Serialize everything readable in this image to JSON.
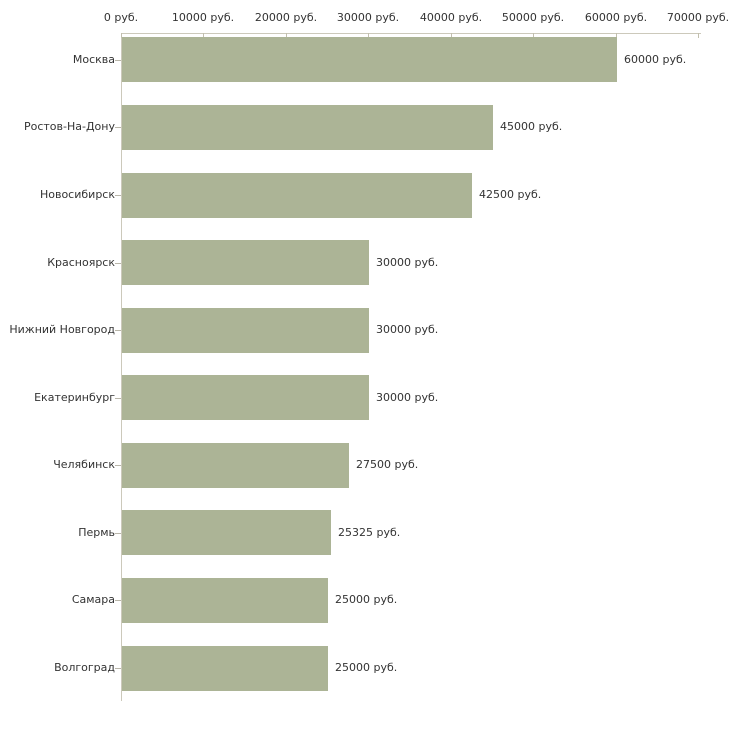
{
  "chart_data": {
    "type": "bar",
    "orientation": "horizontal",
    "unit_suffix": " руб.",
    "categories": [
      "Москва",
      "Ростов-На-Дону",
      "Новосибирск",
      "Красноярск",
      "Нижний Новгород",
      "Екатеринбург",
      "Челябинск",
      "Пермь",
      "Самара",
      "Волгоград"
    ],
    "values": [
      60000,
      45000,
      42500,
      30000,
      30000,
      30000,
      27500,
      25325,
      25000,
      25000
    ],
    "value_labels": [
      "60000 руб.",
      "45000 руб.",
      "42500 руб.",
      "30000 руб.",
      "30000 руб.",
      "30000 руб.",
      "27500 руб.",
      "25325 руб.",
      "25000 руб.",
      "25000 руб."
    ],
    "x_ticks": [
      0,
      10000,
      20000,
      30000,
      40000,
      50000,
      60000,
      70000
    ],
    "x_tick_labels": [
      "0 руб.",
      "10000 руб.",
      "20000 руб.",
      "30000 руб.",
      "40000 руб.",
      "50000 руб.",
      "60000 руб.",
      "70000 руб."
    ],
    "xlim": [
      0,
      70000
    ],
    "axis_position": "top",
    "grid": false,
    "legend": "none",
    "colors": {
      "bar": "#acb496",
      "axis_line": "#ccc9bb",
      "tick_mark": "#c2bfae",
      "category_tick": "#b9b6aa",
      "text": "#333333",
      "background": "#ffffff"
    }
  }
}
